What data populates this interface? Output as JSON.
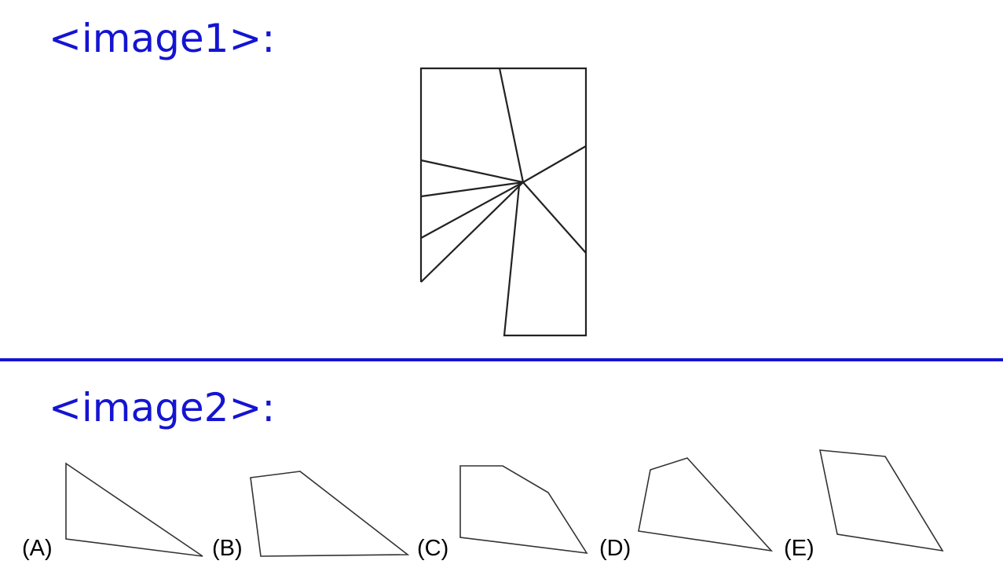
{
  "image1": {
    "heading": "<image1>:"
  },
  "image2": {
    "heading": "<image2>:",
    "options": [
      {
        "label": "(A)"
      },
      {
        "label": "(B)"
      },
      {
        "label": "(C)"
      },
      {
        "label": "(D)"
      },
      {
        "label": "(E)"
      }
    ]
  },
  "colors": {
    "heading": "#1414d2",
    "divider": "#1414d2",
    "line": "#222222"
  }
}
